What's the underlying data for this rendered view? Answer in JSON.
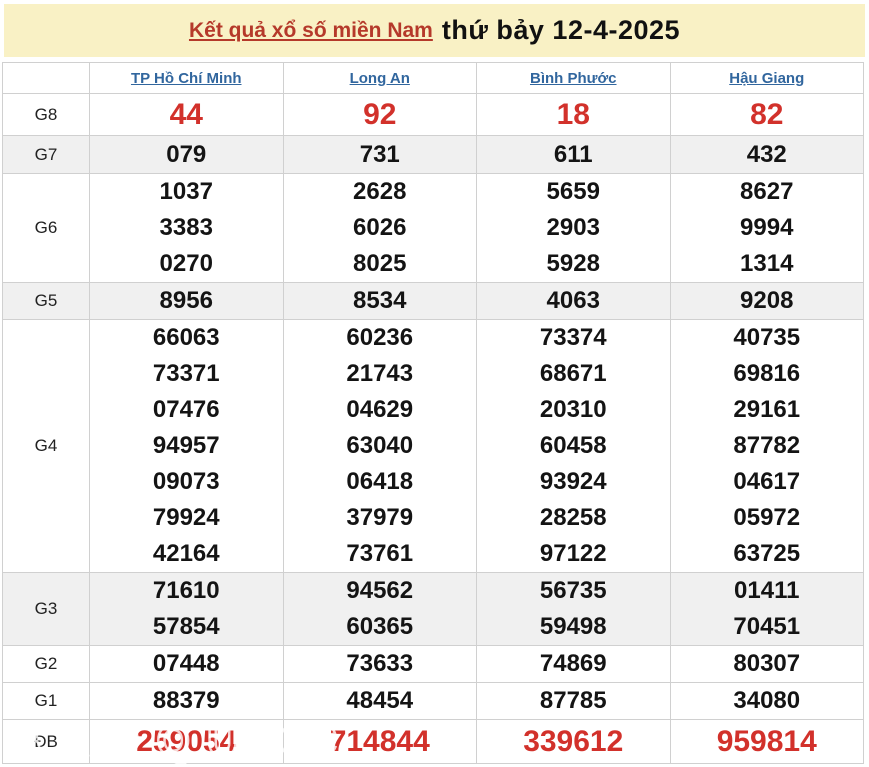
{
  "header": {
    "title_link": "Kết quả xổ số miền Nam",
    "title_date": "thứ bảy 12-4-2025"
  },
  "table": {
    "columns": [
      "TP Hồ Chí Minh",
      "Long An",
      "Bình Phước",
      "Hậu Giang"
    ],
    "rows": [
      {
        "key": "g8",
        "label": "G8",
        "shaded": false,
        "values": [
          [
            "44"
          ],
          [
            "92"
          ],
          [
            "18"
          ],
          [
            "82"
          ]
        ]
      },
      {
        "key": "g7",
        "label": "G7",
        "shaded": true,
        "values": [
          [
            "079"
          ],
          [
            "731"
          ],
          [
            "611"
          ],
          [
            "432"
          ]
        ]
      },
      {
        "key": "g6",
        "label": "G6",
        "shaded": false,
        "values": [
          [
            "1037",
            "3383",
            "0270"
          ],
          [
            "2628",
            "6026",
            "8025"
          ],
          [
            "5659",
            "2903",
            "5928"
          ],
          [
            "8627",
            "9994",
            "1314"
          ]
        ]
      },
      {
        "key": "g5",
        "label": "G5",
        "shaded": true,
        "values": [
          [
            "8956"
          ],
          [
            "8534"
          ],
          [
            "4063"
          ],
          [
            "9208"
          ]
        ]
      },
      {
        "key": "g4",
        "label": "G4",
        "shaded": false,
        "values": [
          [
            "66063",
            "73371",
            "07476",
            "94957",
            "09073",
            "79924",
            "42164"
          ],
          [
            "60236",
            "21743",
            "04629",
            "63040",
            "06418",
            "37979",
            "73761"
          ],
          [
            "73374",
            "68671",
            "20310",
            "60458",
            "93924",
            "28258",
            "97122"
          ],
          [
            "40735",
            "69816",
            "29161",
            "87782",
            "04617",
            "05972",
            "63725"
          ]
        ]
      },
      {
        "key": "g3",
        "label": "G3",
        "shaded": true,
        "values": [
          [
            "71610",
            "57854"
          ],
          [
            "94562",
            "60365"
          ],
          [
            "56735",
            "59498"
          ],
          [
            "01411",
            "70451"
          ]
        ]
      },
      {
        "key": "g2",
        "label": "G2",
        "shaded": false,
        "values": [
          [
            "07448"
          ],
          [
            "73633"
          ],
          [
            "74869"
          ],
          [
            "80307"
          ]
        ]
      },
      {
        "key": "g1",
        "label": "G1",
        "shaded": false,
        "values": [
          [
            "88379"
          ],
          [
            "48454"
          ],
          [
            "87785"
          ],
          [
            "34080"
          ]
        ]
      },
      {
        "key": "db",
        "label": "ĐB",
        "shaded": false,
        "values": [
          [
            "259054"
          ],
          [
            "714844"
          ],
          [
            "339612"
          ],
          [
            "959814"
          ]
        ]
      }
    ]
  },
  "watermark": {
    "text": "BAOQUOC"
  },
  "colors": {
    "header_bg": "#f9f1c5",
    "title_red": "#b5392a",
    "link_blue": "#31669e",
    "number_red": "#d2312b",
    "stripe_gray": "#f0f0f0",
    "border": "#d0d0d0"
  }
}
